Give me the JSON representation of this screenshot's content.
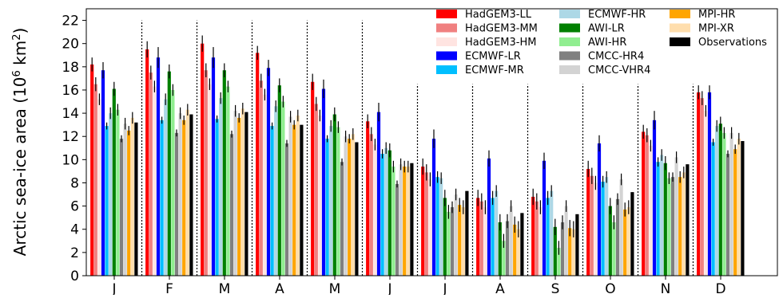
{
  "chart_data": {
    "type": "bar",
    "ylabel": "Arctic sea-ice area (10",
    "ylabel_exp": "6",
    "ylabel_unit": " km",
    "ylabel_exp2": "2",
    "ylabel_close": ")",
    "ylim": [
      0,
      23
    ],
    "yticks": [
      0,
      2,
      4,
      6,
      8,
      10,
      12,
      14,
      16,
      18,
      20,
      22
    ],
    "categories": [
      "J",
      "F",
      "M",
      "A",
      "M",
      "J",
      "J",
      "A",
      "S",
      "O",
      "N",
      "D"
    ],
    "grid": false,
    "legend_position": "top-right",
    "series": [
      {
        "name": "HadGEM3-LL",
        "color": "#ff0000",
        "values": [
          18.2,
          19.5,
          20.0,
          19.2,
          16.7,
          13.3,
          9.4,
          6.7,
          6.8,
          9.2,
          12.4,
          15.8
        ],
        "err": [
          0.6,
          0.7,
          0.7,
          0.6,
          0.7,
          0.6,
          0.7,
          0.7,
          0.7,
          0.7,
          0.6,
          0.6
        ]
      },
      {
        "name": "HadGEM3-MM",
        "color": "#f08080",
        "values": [
          16.5,
          17.5,
          17.7,
          16.8,
          14.8,
          12.2,
          8.9,
          6.4,
          6.4,
          8.6,
          12.1,
          15.3
        ],
        "err": [
          0.6,
          0.6,
          0.6,
          0.6,
          0.6,
          0.6,
          0.7,
          0.7,
          0.7,
          0.7,
          0.6,
          0.6
        ]
      },
      {
        "name": "HadGEM3-HM",
        "color": "#ffe4e1",
        "values": [
          15.2,
          16.3,
          16.5,
          15.6,
          13.8,
          11.3,
          8.3,
          5.9,
          5.9,
          8.0,
          11.2,
          14.2
        ],
        "err": [
          0.5,
          0.5,
          0.5,
          0.5,
          0.5,
          0.5,
          0.6,
          0.6,
          0.6,
          0.6,
          0.5,
          0.5
        ]
      },
      {
        "name": "ECMWF-LR",
        "color": "#0000ff",
        "values": [
          17.7,
          18.8,
          18.8,
          17.9,
          16.1,
          14.1,
          11.8,
          10.1,
          9.9,
          11.4,
          13.4,
          15.8
        ],
        "err": [
          0.7,
          0.9,
          0.9,
          0.7,
          0.8,
          0.8,
          0.8,
          0.7,
          0.7,
          0.7,
          0.8,
          0.6
        ]
      },
      {
        "name": "ECMWF-MR",
        "color": "#00bfff",
        "values": [
          12.9,
          13.4,
          13.5,
          12.9,
          11.8,
          10.5,
          8.5,
          6.7,
          6.7,
          8.1,
          9.8,
          11.5
        ],
        "err": [
          0.3,
          0.3,
          0.3,
          0.3,
          0.3,
          0.4,
          0.5,
          0.6,
          0.6,
          0.5,
          0.4,
          0.3
        ]
      },
      {
        "name": "ECMWF-HR",
        "color": "#add8e6",
        "values": [
          14.0,
          15.2,
          15.3,
          14.6,
          12.9,
          11.0,
          8.4,
          7.3,
          7.3,
          8.5,
          10.4,
          12.9
        ],
        "err": [
          0.5,
          0.5,
          0.5,
          0.5,
          0.5,
          0.5,
          0.5,
          0.5,
          0.5,
          0.5,
          0.5,
          0.5
        ]
      },
      {
        "name": "AWI-LR",
        "color": "#008000",
        "values": [
          16.1,
          17.6,
          17.7,
          16.4,
          13.9,
          10.8,
          6.7,
          4.6,
          4.2,
          6.0,
          9.7,
          13.1
        ],
        "err": [
          0.6,
          0.6,
          0.6,
          0.6,
          0.6,
          0.6,
          0.7,
          0.7,
          0.7,
          0.7,
          0.6,
          0.6
        ]
      },
      {
        "name": "AWI-HR",
        "color": "#90ee90",
        "values": [
          14.3,
          16.0,
          16.3,
          15.0,
          12.8,
          9.4,
          5.5,
          3.0,
          2.4,
          4.6,
          8.4,
          12.3
        ],
        "err": [
          0.5,
          0.5,
          0.5,
          0.5,
          0.5,
          0.5,
          0.6,
          0.6,
          0.6,
          0.6,
          0.5,
          0.5
        ]
      },
      {
        "name": "CMCC-HR4",
        "color": "#808080",
        "values": [
          11.8,
          12.3,
          12.2,
          11.4,
          9.8,
          7.9,
          5.9,
          4.7,
          4.6,
          6.6,
          8.5,
          10.5
        ],
        "err": [
          0.3,
          0.3,
          0.3,
          0.3,
          0.3,
          0.3,
          0.5,
          0.6,
          0.6,
          0.5,
          0.4,
          0.3
        ]
      },
      {
        "name": "CMCC-VHR4",
        "color": "#d3d3d3",
        "values": [
          13.1,
          14.0,
          14.2,
          13.7,
          12.0,
          9.6,
          7.0,
          6.0,
          6.0,
          8.3,
          10.2,
          12.3
        ],
        "err": [
          0.5,
          0.5,
          0.5,
          0.5,
          0.5,
          0.5,
          0.5,
          0.5,
          0.5,
          0.5,
          0.5,
          0.5
        ]
      },
      {
        "name": "MPI-HR",
        "color": "#ffa500",
        "values": [
          12.5,
          13.4,
          13.6,
          13.0,
          11.8,
          9.4,
          6.1,
          4.4,
          4.1,
          5.7,
          8.5,
          10.9
        ],
        "err": [
          0.4,
          0.4,
          0.4,
          0.4,
          0.4,
          0.5,
          0.6,
          0.7,
          0.7,
          0.6,
          0.5,
          0.4
        ]
      },
      {
        "name": "MPI-XR",
        "color": "#ffdead",
        "values": [
          13.6,
          14.3,
          14.4,
          13.8,
          12.2,
          9.4,
          5.9,
          4.0,
          4.0,
          5.9,
          8.9,
          11.8
        ],
        "err": [
          0.5,
          0.5,
          0.5,
          0.5,
          0.5,
          0.5,
          0.6,
          0.7,
          0.7,
          0.6,
          0.5,
          0.5
        ]
      },
      {
        "name": "Observations",
        "color": "#000000",
        "values": [
          13.2,
          13.9,
          14.1,
          13.0,
          11.5,
          9.7,
          7.3,
          5.4,
          5.3,
          7.2,
          9.6,
          11.6
        ],
        "err": [
          0.0,
          0.0,
          0.0,
          0.0,
          0.0,
          0.0,
          0.0,
          0.0,
          0.0,
          0.0,
          0.0,
          0.0
        ]
      }
    ]
  }
}
